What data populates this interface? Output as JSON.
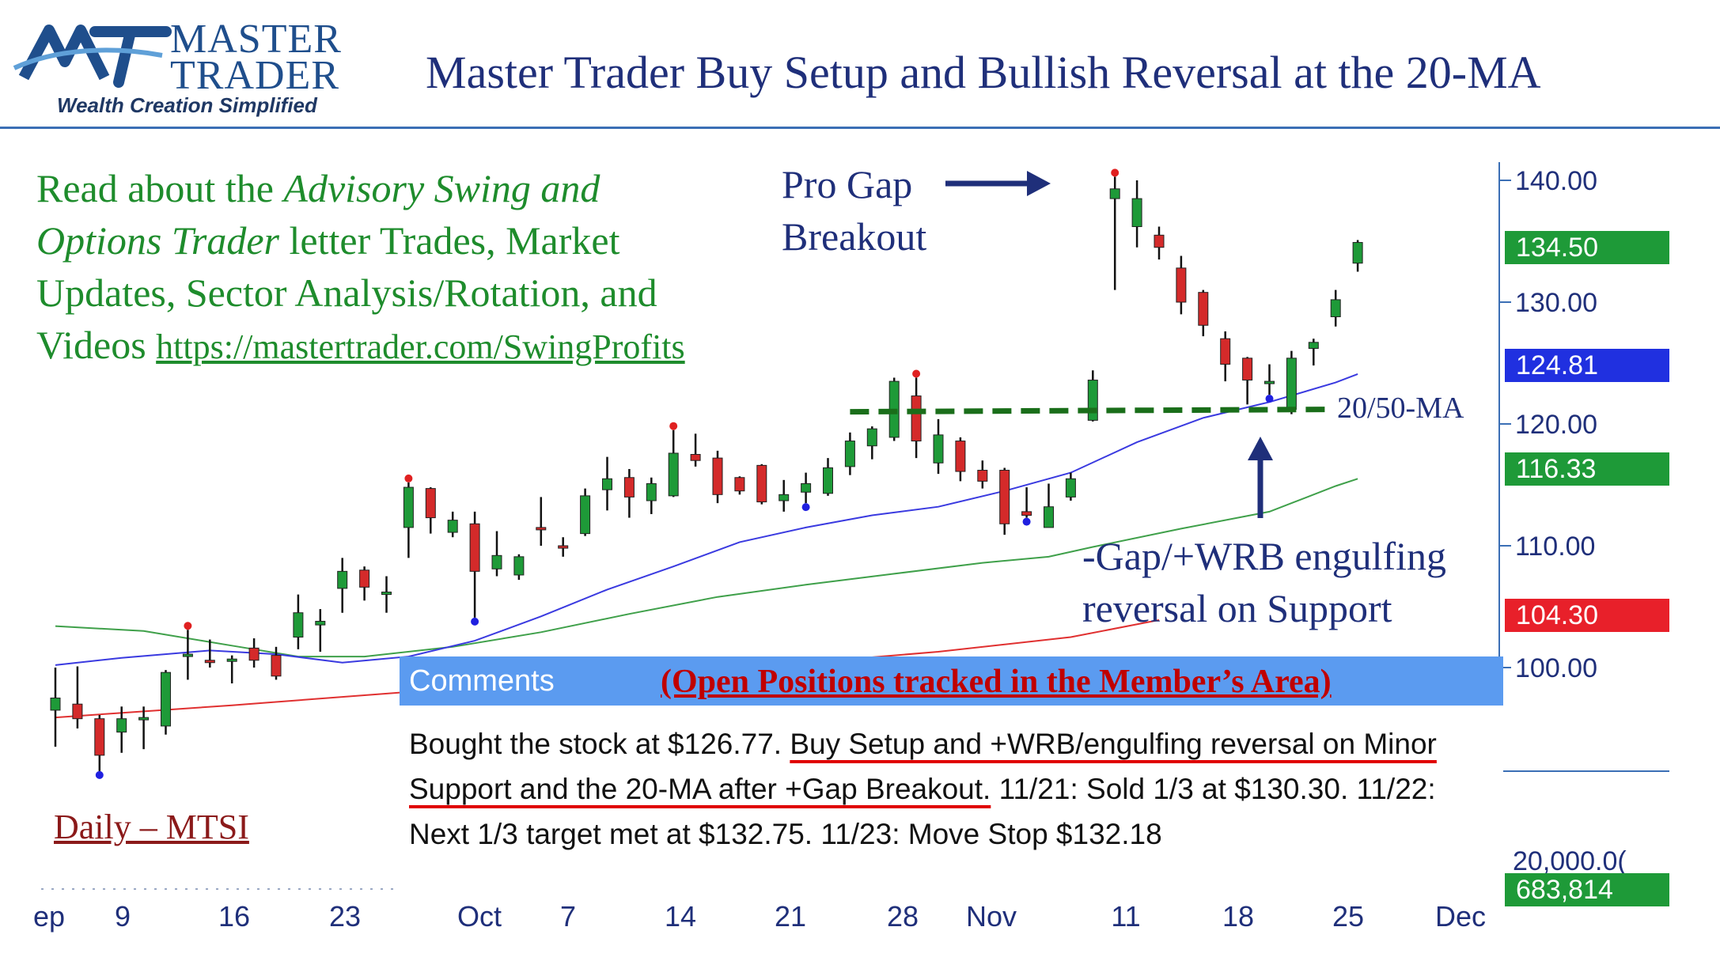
{
  "logo": {
    "mark": "MT",
    "word1": "MASTER",
    "word2": "TRADER",
    "tagline": "Wealth Creation Simplified"
  },
  "title": "Master Trader Buy Setup and Bullish Reversal at the 20-MA",
  "promo": {
    "part1": "Read about the ",
    "italic": "Advisory Swing and Options Trader",
    "part2": " letter Trades, Market Updates, Sector Analysis/Rotation, and Videos ",
    "link": "https://mastertrader.com/SwingProfits"
  },
  "annotations": {
    "gap_line1": "Pro Gap",
    "gap_line2": "Breakout",
    "ma_label": "20/50-MA",
    "reversal_line1": "-Gap/+WRB engulfing",
    "reversal_line2": "reversal on Support",
    "chart_label": "Daily – MTSI"
  },
  "comments": {
    "label": "Comments",
    "note": "(Open Positions tracked in the Member’s Area)",
    "text_pre": "Bought the stock at $126.77.  ",
    "text_underlined": "Buy Setup and +WRB/engulfing reversal on Minor Support and the 20-MA after +Gap Breakout.",
    "text_post": "  11/21:  Sold 1/3 at $130.30.   11/22:  Next 1/3 target met at $132.75.  11/23:  Move Stop $132.18"
  },
  "price_tags": [
    {
      "value": "134.50",
      "color": "#1e9a38"
    },
    {
      "value": "124.81",
      "color": "#2030e0"
    },
    {
      "value": "116.33",
      "color": "#1e9a38"
    },
    {
      "value": "104.30",
      "color": "#e8202a"
    }
  ],
  "volume_tags": {
    "axis_label": "20,000.0(",
    "volume": "683,814",
    "color": "#1e9a38"
  },
  "colors": {
    "up": "#1e9a38",
    "down": "#d42a2a",
    "ma20": "#3a3ae0",
    "ma50": "#3fa04a",
    "ma200": "#e03030",
    "support": "#1a6e1a"
  },
  "chart_data": {
    "type": "candlestick",
    "ticker": "MTSI",
    "y_ticks": [
      "140.00",
      "130.00",
      "120.00",
      "110.00",
      "100.00"
    ],
    "ylim": [
      92,
      142
    ],
    "x_ticks": [
      "ep",
      "9",
      "16",
      "23",
      "Oct",
      "7",
      "14",
      "21",
      "28",
      "Nov",
      "11",
      "18",
      "25",
      "Dec"
    ],
    "candles": [
      [
        0,
        96.5,
        97.5,
        93.5,
        100.0
      ],
      [
        1,
        97.0,
        95.8,
        95.0,
        100.1
      ],
      [
        2,
        95.8,
        92.8,
        91.5,
        96.1
      ],
      [
        3,
        94.7,
        95.8,
        93.0,
        96.8
      ],
      [
        4,
        95.8,
        95.9,
        93.3,
        96.8
      ],
      [
        5,
        95.2,
        99.6,
        94.5,
        99.8
      ],
      [
        6,
        101.0,
        101.1,
        99.0,
        103.1
      ],
      [
        7,
        100.6,
        100.5,
        100.0,
        102.3
      ],
      [
        8,
        100.6,
        100.7,
        98.7,
        101.0
      ],
      [
        9,
        101.6,
        100.6,
        100.0,
        102.4
      ],
      [
        10,
        101.0,
        99.3,
        99.0,
        101.7
      ],
      [
        11,
        102.5,
        104.5,
        101.5,
        106.0
      ],
      [
        12,
        103.5,
        103.8,
        101.3,
        104.8
      ],
      [
        13,
        106.5,
        107.9,
        104.5,
        109.0
      ],
      [
        14,
        108.0,
        106.6,
        105.5,
        108.3
      ],
      [
        15,
        106.0,
        106.2,
        104.5,
        107.5
      ],
      [
        16,
        111.5,
        114.8,
        109.0,
        115.2
      ],
      [
        17,
        114.7,
        112.3,
        111.0,
        114.8
      ],
      [
        18,
        111.1,
        112.1,
        110.7,
        112.8
      ],
      [
        19,
        111.8,
        107.9,
        104.1,
        112.8
      ],
      [
        20,
        108.1,
        109.2,
        107.5,
        111.2
      ],
      [
        21,
        107.6,
        109.1,
        107.2,
        109.3
      ],
      [
        22,
        111.5,
        111.4,
        110.0,
        114.0
      ],
      [
        23,
        110.0,
        109.8,
        109.1,
        110.7
      ],
      [
        24,
        111.0,
        114.1,
        110.8,
        114.7
      ],
      [
        25,
        114.6,
        115.5,
        112.9,
        117.3
      ],
      [
        26,
        115.6,
        114.0,
        112.3,
        116.3
      ],
      [
        27,
        113.7,
        115.1,
        112.6,
        115.6
      ],
      [
        28,
        114.1,
        117.6,
        114.0,
        119.5
      ],
      [
        29,
        117.5,
        117.0,
        116.5,
        119.2
      ],
      [
        30,
        117.2,
        114.2,
        113.5,
        117.8
      ],
      [
        31,
        115.6,
        114.5,
        114.2,
        115.7
      ],
      [
        32,
        116.6,
        113.6,
        113.4,
        116.7
      ],
      [
        33,
        113.7,
        114.2,
        112.8,
        115.4
      ],
      [
        34,
        114.4,
        115.1,
        113.5,
        116.0
      ],
      [
        35,
        114.3,
        116.4,
        114.1,
        117.2
      ],
      [
        36,
        116.5,
        118.6,
        115.8,
        119.3
      ],
      [
        37,
        118.2,
        119.6,
        117.1,
        119.8
      ],
      [
        38,
        118.9,
        123.5,
        118.6,
        123.8
      ],
      [
        39,
        122.3,
        118.6,
        117.2,
        123.8
      ],
      [
        40,
        116.8,
        119.1,
        115.9,
        120.4
      ],
      [
        41,
        118.6,
        116.1,
        115.3,
        118.9
      ],
      [
        42,
        116.2,
        115.3,
        114.7,
        117.0
      ],
      [
        43,
        116.2,
        111.8,
        110.9,
        116.4
      ],
      [
        44,
        112.8,
        112.5,
        112.3,
        114.8
      ],
      [
        45,
        111.5,
        113.2,
        111.6,
        115.1
      ],
      [
        46,
        114.0,
        115.5,
        113.7,
        116.0
      ],
      [
        47,
        120.3,
        123.6,
        120.2,
        124.4
      ],
      [
        48,
        138.5,
        139.3,
        131.0,
        140.3
      ],
      [
        49,
        136.2,
        138.5,
        134.5,
        140.0
      ],
      [
        50,
        135.5,
        134.5,
        133.5,
        136.2
      ],
      [
        51,
        132.8,
        130.0,
        129.0,
        133.8
      ],
      [
        52,
        130.8,
        128.1,
        127.2,
        131.0
      ],
      [
        53,
        127.0,
        124.9,
        123.5,
        127.6
      ],
      [
        54,
        125.4,
        123.6,
        121.6,
        125.5
      ],
      [
        55,
        123.5,
        123.5,
        122.4,
        124.9
      ],
      [
        56,
        121.2,
        125.4,
        120.8,
        126.0
      ],
      [
        57,
        126.2,
        126.7,
        124.8,
        127.0
      ],
      [
        58,
        128.8,
        130.2,
        128.0,
        131.0
      ],
      [
        59,
        133.2,
        134.9,
        132.5,
        135.1
      ]
    ],
    "ma20": [
      [
        0,
        100.2
      ],
      [
        3,
        100.8
      ],
      [
        7,
        101.4
      ],
      [
        10,
        101.1
      ],
      [
        13,
        100.4
      ],
      [
        16,
        100.9
      ],
      [
        19,
        102.2
      ],
      [
        22,
        104.2
      ],
      [
        25,
        106.4
      ],
      [
        28,
        108.3
      ],
      [
        31,
        110.3
      ],
      [
        34,
        111.5
      ],
      [
        37,
        112.5
      ],
      [
        40,
        113.2
      ],
      [
        43,
        114.5
      ],
      [
        46,
        116.0
      ],
      [
        49,
        118.5
      ],
      [
        52,
        120.5
      ],
      [
        55,
        121.8
      ],
      [
        58,
        123.4
      ],
      [
        59,
        124.1
      ]
    ],
    "ma50": [
      [
        0,
        103.4
      ],
      [
        4,
        103.0
      ],
      [
        8,
        101.8
      ],
      [
        11,
        100.9
      ],
      [
        14,
        100.9
      ],
      [
        18,
        101.7
      ],
      [
        22,
        102.9
      ],
      [
        26,
        104.4
      ],
      [
        30,
        105.8
      ],
      [
        34,
        106.8
      ],
      [
        38,
        107.7
      ],
      [
        42,
        108.6
      ],
      [
        45,
        109.1
      ],
      [
        47,
        109.9
      ],
      [
        51,
        111.4
      ],
      [
        55,
        112.8
      ],
      [
        58,
        114.9
      ],
      [
        59,
        115.5
      ]
    ],
    "ma200": [
      [
        0,
        95.9
      ],
      [
        8,
        96.9
      ],
      [
        16,
        98.0
      ],
      [
        24,
        99.0
      ],
      [
        32,
        100.1
      ],
      [
        40,
        101.3
      ],
      [
        46,
        102.5
      ],
      [
        50,
        103.9
      ]
    ],
    "support_line": {
      "y": 121.0,
      "from": 36,
      "to": 57
    },
    "swing_high_dots": [
      6,
      16,
      28,
      39,
      48
    ],
    "swing_low_dots": [
      2,
      19,
      34,
      44,
      55
    ]
  }
}
